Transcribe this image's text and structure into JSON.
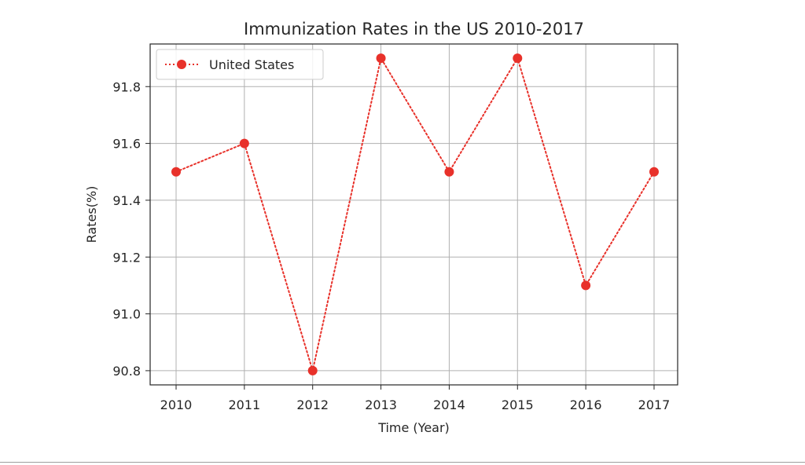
{
  "chart_data": {
    "type": "line",
    "title": "Immunization Rates in the US 2010-2017",
    "xlabel": "Time (Year)",
    "ylabel": "Rates(%)",
    "x": [
      "2010",
      "2011",
      "2012",
      "2013",
      "2014",
      "2015",
      "2016",
      "2017"
    ],
    "series": [
      {
        "name": "United States",
        "values": [
          91.5,
          91.6,
          90.8,
          91.9,
          91.5,
          91.9,
          91.1,
          91.5
        ],
        "color": "#e8312a",
        "line_style": "dotted",
        "marker": "circle"
      }
    ],
    "yticks": [
      "90.8",
      "91.0",
      "91.2",
      "91.4",
      "91.6",
      "91.8"
    ],
    "ylim": [
      90.75,
      91.95
    ],
    "grid": true,
    "legend": "upper-left"
  }
}
